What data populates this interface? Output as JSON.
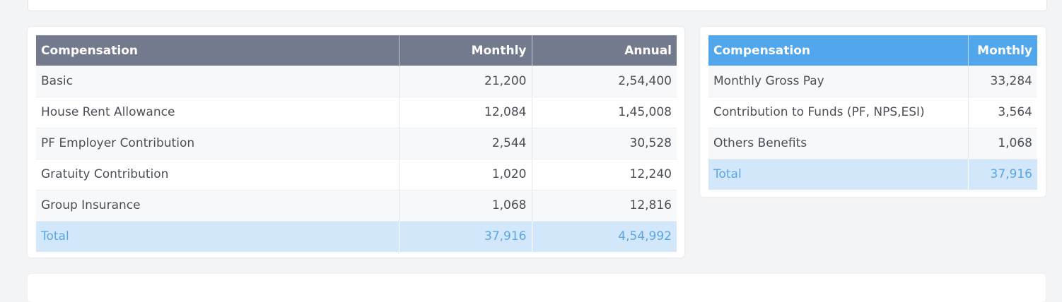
{
  "ctc_table": {
    "headers": [
      "Compensation",
      "Monthly",
      "Annual"
    ],
    "rows": [
      [
        "Basic",
        "21,200",
        "2,54,400"
      ],
      [
        "House Rent Allowance",
        "12,084",
        "1,45,008"
      ],
      [
        "PF Employer Contribution",
        "2,544",
        "30,528"
      ],
      [
        "Gratuity Contribution",
        "1,020",
        "12,240"
      ],
      [
        "Group Insurance",
        "1,068",
        "12,816"
      ]
    ],
    "total": [
      "Total",
      "37,916",
      "4,54,992"
    ]
  },
  "monthly_table": {
    "headers": [
      "Compensation",
      "Monthly"
    ],
    "rows": [
      [
        "Monthly Gross Pay",
        "33,284"
      ],
      [
        "Contribution to Funds (PF, NPS,ESI)",
        "3,564"
      ],
      [
        "Others Benefits",
        "1,068"
      ]
    ],
    "total": [
      "Total",
      "37,916"
    ]
  },
  "colors": {
    "left_header_bg": "#737a8e",
    "right_header_bg": "#52a6ec",
    "total_row_bg": "#d3e7fa",
    "total_text": "#5aa6e4",
    "page_bg": "#f3f4f6"
  }
}
